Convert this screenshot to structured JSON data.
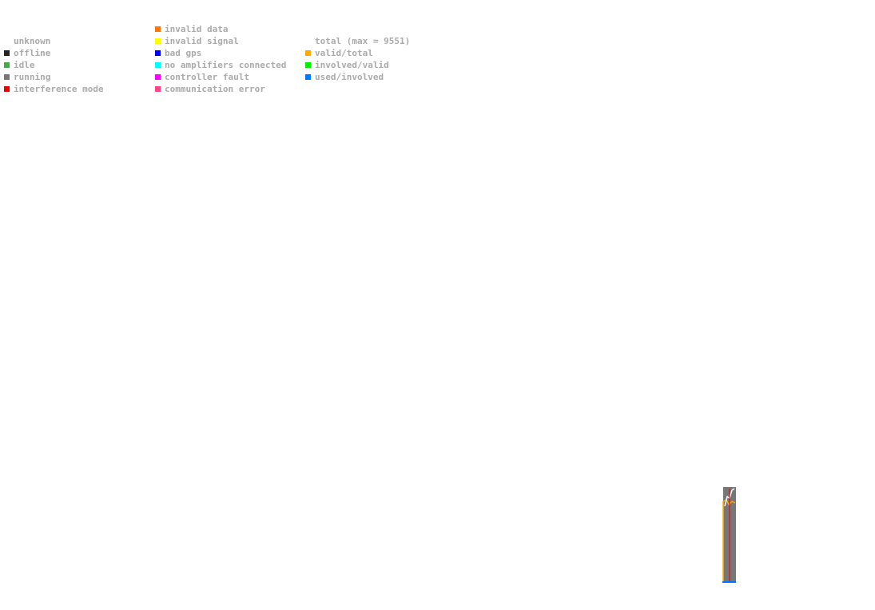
{
  "legend": {
    "columns": [
      [
        {
          "label": "unknown"
        },
        {
          "label": "offline",
          "color": "#222222"
        },
        {
          "label": "idle",
          "color": "#44aa44"
        },
        {
          "label": "running",
          "color": "#777777"
        },
        {
          "label": "interference mode",
          "color": "#ee0000"
        }
      ],
      [
        {
          "label": "invalid data",
          "color": "#ff7700"
        },
        {
          "label": "invalid signal",
          "color": "#ffff00"
        },
        {
          "label": "bad gps",
          "color": "#0000ff"
        },
        {
          "label": "no amplifiers connected",
          "color": "#00ffff"
        },
        {
          "label": "controller fault",
          "color": "#ff00ff"
        },
        {
          "label": "communication error",
          "color": "#ff4488"
        }
      ],
      [
        {
          "label": "total (max = 9551)"
        },
        {
          "label": "valid/total",
          "color": "#ffaa00"
        },
        {
          "label": "involved/valid",
          "color": "#00ee00"
        },
        {
          "label": "used/involved",
          "color": "#0077ff"
        }
      ]
    ]
  }
}
